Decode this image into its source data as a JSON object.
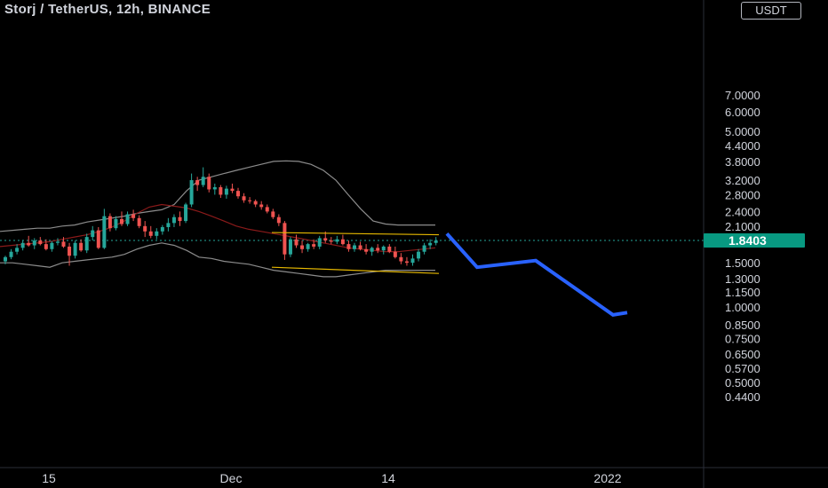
{
  "header": {
    "title": "Storj / TetherUS, 12h, BINANCE",
    "currency_button": "USDT"
  },
  "colors": {
    "up": "#26a69a",
    "down": "#ef5350",
    "price_line": "#26a69a",
    "bb_band": "#8c8c8c",
    "bb_basis": "#8b1a1a",
    "channel": "#e6b800",
    "projection": "#2962ff"
  },
  "chart_data": {
    "type": "candlestick",
    "title": "Storj / TetherUS, 12h, BINANCE",
    "y_axis": {
      "scale": "log",
      "ticks": [
        "7.0000",
        "6.0000",
        "5.0000",
        "4.4000",
        "3.8000",
        "3.2000",
        "2.8000",
        "2.4000",
        "2.1000",
        "1.5000",
        "1.3000",
        "1.1500",
        "1.0000",
        "0.8500",
        "0.7500",
        "0.6500",
        "0.5700",
        "0.5000",
        "0.4400"
      ],
      "current_price": "1.8403"
    },
    "x_axis": {
      "ticks": [
        "15",
        "Dec",
        "14",
        "2022"
      ]
    },
    "candles": [
      [
        1.52,
        1.6,
        1.48,
        1.58
      ],
      [
        1.58,
        1.7,
        1.55,
        1.66
      ],
      [
        1.66,
        1.78,
        1.62,
        1.72
      ],
      [
        1.72,
        1.85,
        1.68,
        1.8
      ],
      [
        1.8,
        1.92,
        1.74,
        1.76
      ],
      [
        1.76,
        1.88,
        1.7,
        1.84
      ],
      [
        1.84,
        1.9,
        1.76,
        1.78
      ],
      [
        1.78,
        1.86,
        1.68,
        1.7
      ],
      [
        1.7,
        1.83,
        1.66,
        1.8
      ],
      [
        1.8,
        1.88,
        1.76,
        1.82
      ],
      [
        1.82,
        1.9,
        1.72,
        1.74
      ],
      [
        1.74,
        1.8,
        1.46,
        1.6
      ],
      [
        1.6,
        1.84,
        1.56,
        1.8
      ],
      [
        1.8,
        1.86,
        1.66,
        1.68
      ],
      [
        1.68,
        1.96,
        1.64,
        1.9
      ],
      [
        1.9,
        2.1,
        1.84,
        2.02
      ],
      [
        2.02,
        2.08,
        1.7,
        1.72
      ],
      [
        1.72,
        2.46,
        1.7,
        2.3
      ],
      [
        2.3,
        2.36,
        2.0,
        2.06
      ],
      [
        2.06,
        2.3,
        2.02,
        2.24
      ],
      [
        2.24,
        2.4,
        2.1,
        2.14
      ],
      [
        2.14,
        2.4,
        2.1,
        2.34
      ],
      [
        2.34,
        2.44,
        2.2,
        2.26
      ],
      [
        2.26,
        2.32,
        2.06,
        2.1
      ],
      [
        2.1,
        2.2,
        1.9,
        2.0
      ],
      [
        2.0,
        2.1,
        1.88,
        1.92
      ],
      [
        1.92,
        2.06,
        1.86,
        2.0
      ],
      [
        2.0,
        2.12,
        1.94,
        2.08
      ],
      [
        2.08,
        2.26,
        2.0,
        2.16
      ],
      [
        2.16,
        2.34,
        2.08,
        2.28
      ],
      [
        2.28,
        2.4,
        2.1,
        2.2
      ],
      [
        2.2,
        2.6,
        2.16,
        2.56
      ],
      [
        2.56,
        3.4,
        2.5,
        3.2
      ],
      [
        3.2,
        3.3,
        2.9,
        3.06
      ],
      [
        3.06,
        3.6,
        3.0,
        3.3
      ],
      [
        3.3,
        3.4,
        2.86,
        2.94
      ],
      [
        2.94,
        3.1,
        2.8,
        3.0
      ],
      [
        3.0,
        3.06,
        2.72,
        2.8
      ],
      [
        2.8,
        3.04,
        2.7,
        2.96
      ],
      [
        2.96,
        3.1,
        2.84,
        2.9
      ],
      [
        2.9,
        2.98,
        2.7,
        2.76
      ],
      [
        2.76,
        2.84,
        2.6,
        2.66
      ],
      [
        2.66,
        2.74,
        2.58,
        2.64
      ],
      [
        2.64,
        2.68,
        2.5,
        2.56
      ],
      [
        2.56,
        2.64,
        2.44,
        2.5
      ],
      [
        2.5,
        2.56,
        2.36,
        2.4
      ],
      [
        2.4,
        2.46,
        2.24,
        2.28
      ],
      [
        2.28,
        2.34,
        2.1,
        2.16
      ],
      [
        2.16,
        2.2,
        1.54,
        1.62
      ],
      [
        1.62,
        1.9,
        1.58,
        1.86
      ],
      [
        1.86,
        1.94,
        1.72,
        1.76
      ],
      [
        1.76,
        1.84,
        1.64,
        1.7
      ],
      [
        1.7,
        1.8,
        1.66,
        1.78
      ],
      [
        1.78,
        1.86,
        1.7,
        1.74
      ],
      [
        1.74,
        1.92,
        1.7,
        1.88
      ],
      [
        1.88,
        2.0,
        1.8,
        1.84
      ],
      [
        1.84,
        1.9,
        1.78,
        1.82
      ],
      [
        1.82,
        1.92,
        1.78,
        1.86
      ],
      [
        1.86,
        1.94,
        1.76,
        1.78
      ],
      [
        1.78,
        1.84,
        1.66,
        1.7
      ],
      [
        1.7,
        1.8,
        1.66,
        1.76
      ],
      [
        1.76,
        1.82,
        1.68,
        1.7
      ],
      [
        1.7,
        1.78,
        1.62,
        1.66
      ],
      [
        1.66,
        1.74,
        1.6,
        1.72
      ],
      [
        1.72,
        1.78,
        1.64,
        1.68
      ],
      [
        1.68,
        1.76,
        1.62,
        1.74
      ],
      [
        1.74,
        1.78,
        1.64,
        1.66
      ],
      [
        1.66,
        1.74,
        1.56,
        1.58
      ],
      [
        1.58,
        1.64,
        1.48,
        1.52
      ],
      [
        1.52,
        1.58,
        1.46,
        1.5
      ],
      [
        1.5,
        1.62,
        1.46,
        1.56
      ],
      [
        1.56,
        1.7,
        1.52,
        1.66
      ],
      [
        1.66,
        1.8,
        1.62,
        1.76
      ],
      [
        1.76,
        1.86,
        1.7,
        1.8
      ],
      [
        1.8,
        1.9,
        1.76,
        1.84
      ]
    ],
    "bollinger": {
      "upper": [
        2.0,
        2.02,
        2.04,
        2.06,
        2.06,
        2.1,
        2.12,
        2.18,
        2.22,
        2.26,
        2.3,
        2.36,
        2.4,
        2.44,
        2.56,
        2.9,
        3.2,
        3.3,
        3.4,
        3.5,
        3.6,
        3.7,
        3.8,
        3.82,
        3.8,
        3.7,
        3.5,
        3.2,
        2.8,
        2.46,
        2.2,
        2.14,
        2.12,
        2.12,
        2.12,
        2.12
      ],
      "basis": [
        1.74,
        1.76,
        1.78,
        1.8,
        1.82,
        1.86,
        1.9,
        1.94,
        2.0,
        2.08,
        2.2,
        2.36,
        2.5,
        2.56,
        2.52,
        2.48,
        2.4,
        2.3,
        2.2,
        2.1,
        2.04,
        2.0,
        1.96,
        1.92,
        1.88,
        1.84,
        1.8,
        1.76,
        1.72,
        1.7,
        1.68,
        1.66,
        1.66,
        1.68,
        1.7,
        1.72
      ],
      "lower": [
        1.5,
        1.5,
        1.48,
        1.46,
        1.44,
        1.5,
        1.52,
        1.54,
        1.56,
        1.58,
        1.62,
        1.7,
        1.76,
        1.8,
        1.76,
        1.68,
        1.58,
        1.56,
        1.52,
        1.5,
        1.48,
        1.44,
        1.4,
        1.38,
        1.36,
        1.34,
        1.32,
        1.32,
        1.34,
        1.36,
        1.38,
        1.4,
        1.4,
        1.4,
        1.4,
        1.4
      ]
    },
    "channel": {
      "upper": [
        [
          1.98,
          0.0
        ],
        [
          1.94,
          1.0
        ]
      ],
      "lower": [
        [
          1.44,
          0.0
        ],
        [
          1.36,
          1.0
        ]
      ]
    },
    "projection": [
      1.96,
      1.44,
      1.53,
      0.93,
      0.95
    ]
  }
}
